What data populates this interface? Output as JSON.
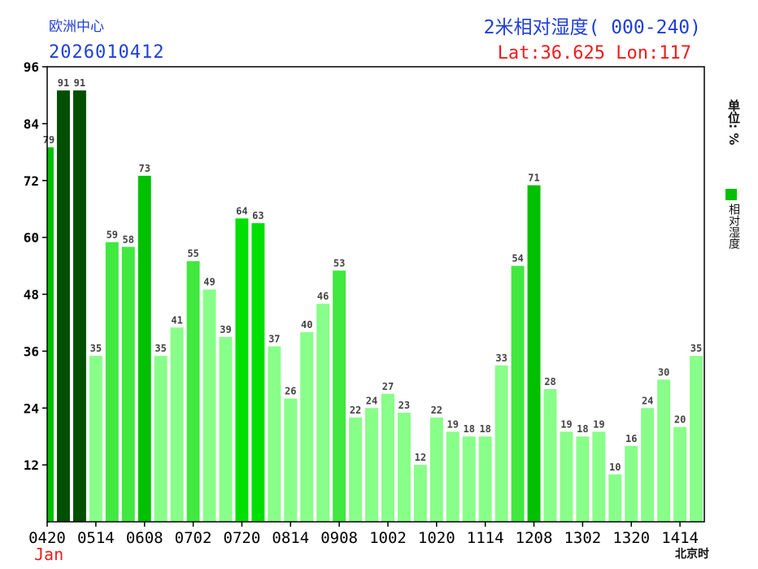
{
  "header": {
    "center": "欧洲中心",
    "run_time": "2026010412",
    "title": "2米相对湿度( 000-240)",
    "location": "Lat:36.625  Lon:117"
  },
  "unit_label": "单位: %",
  "timezone_label": "北京时",
  "month_label": "Jan",
  "chart_data": {
    "type": "bar",
    "legend": [
      {
        "name": "相对湿度",
        "color": "#00c000"
      }
    ],
    "legend_placement": "right",
    "ylim": [
      0,
      96
    ],
    "yticks": [
      12,
      24,
      36,
      48,
      60,
      72,
      84,
      96
    ],
    "x_tick_labels": [
      "0420",
      "0514",
      "0608",
      "0702",
      "0720",
      "0814",
      "0908",
      "1002",
      "1020",
      "1114",
      "1208",
      "1302",
      "1320",
      "1414"
    ],
    "values": [
      79,
      91,
      91,
      35,
      59,
      58,
      73,
      35,
      41,
      55,
      49,
      39,
      64,
      63,
      37,
      26,
      40,
      46,
      53,
      22,
      24,
      27,
      23,
      12,
      22,
      19,
      18,
      18,
      33,
      54,
      71,
      28,
      19,
      18,
      19,
      10,
      16,
      24,
      30,
      20,
      35
    ],
    "color_scale": [
      {
        "min": 90,
        "color": "#005000"
      },
      {
        "min": 70,
        "color": "#00c000"
      },
      {
        "min": 60,
        "color": "#00e000"
      },
      {
        "min": 50,
        "color": "#40e840"
      },
      {
        "min": 0,
        "color": "#88ff88"
      }
    ],
    "grid": false
  }
}
